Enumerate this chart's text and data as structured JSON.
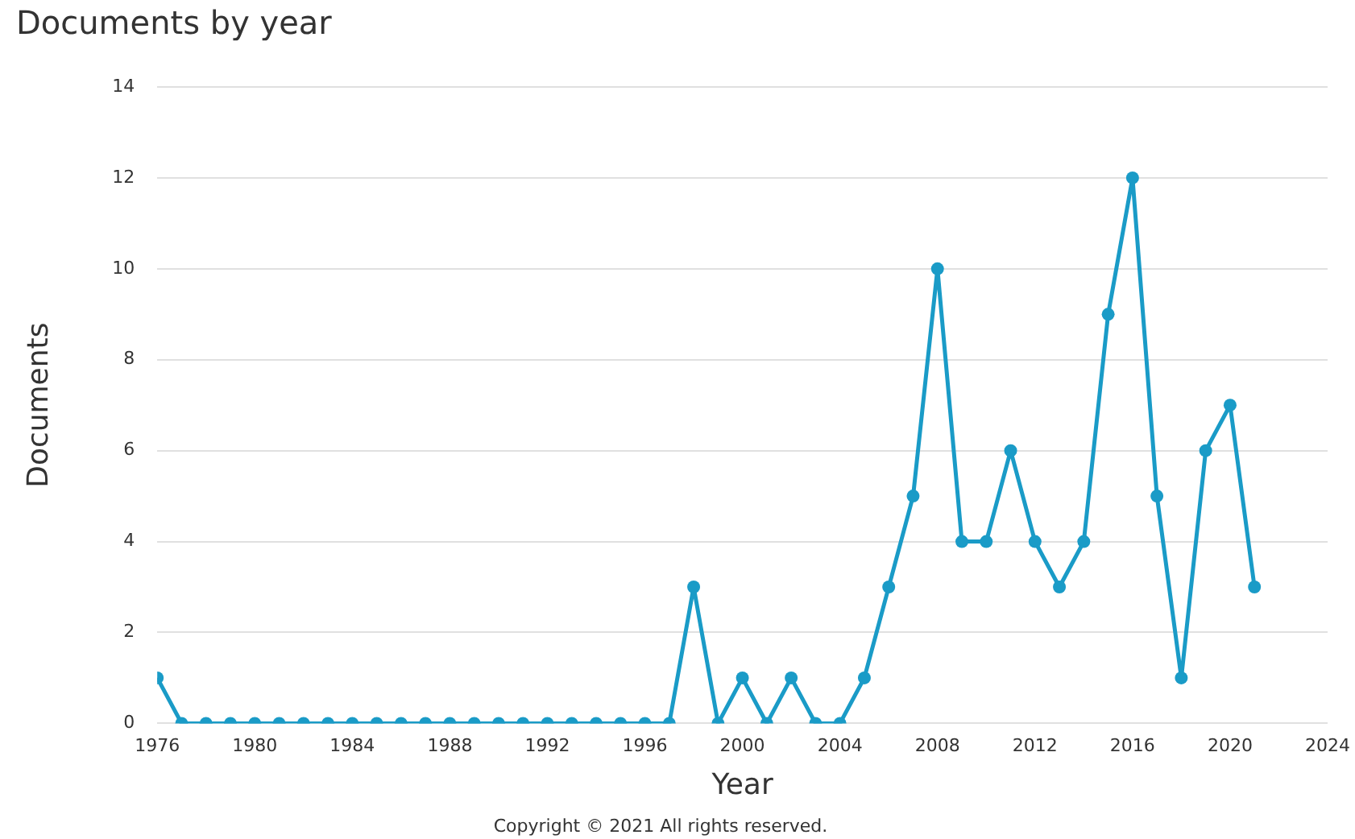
{
  "chart_data": {
    "type": "line",
    "title": "Documents by year",
    "xlabel": "Year",
    "ylabel": "Documents",
    "x": [
      1976,
      1977,
      1978,
      1979,
      1980,
      1981,
      1982,
      1983,
      1984,
      1985,
      1986,
      1987,
      1988,
      1989,
      1990,
      1991,
      1992,
      1993,
      1994,
      1995,
      1996,
      1997,
      1998,
      1999,
      2000,
      2001,
      2002,
      2003,
      2004,
      2005,
      2006,
      2007,
      2008,
      2009,
      2010,
      2011,
      2012,
      2013,
      2014,
      2015,
      2016,
      2017,
      2018,
      2019,
      2020,
      2021
    ],
    "series": [
      {
        "color": "#1a9bc7",
        "values": [
          1,
          0,
          0,
          0,
          0,
          0,
          0,
          0,
          0,
          0,
          0,
          0,
          0,
          0,
          0,
          0,
          0,
          0,
          0,
          0,
          0,
          0,
          3,
          0,
          1,
          0,
          1,
          0,
          0,
          1,
          3,
          5,
          10,
          4,
          4,
          6,
          4,
          3,
          4,
          9,
          12,
          5,
          1,
          6,
          7,
          3
        ]
      }
    ],
    "xlim": [
      1976,
      2024
    ],
    "xticks": [
      1976,
      1980,
      1984,
      1988,
      1992,
      1996,
      2000,
      2004,
      2008,
      2012,
      2016,
      2020,
      2024
    ],
    "ylim": [
      0,
      14
    ],
    "yticks": [
      0,
      2,
      4,
      6,
      8,
      10,
      12,
      14
    ],
    "grid": "y",
    "legend": false,
    "marker": "circle",
    "line_style": "solid",
    "annotations": [
      "Copyright © 2021 All rights reserved."
    ]
  }
}
